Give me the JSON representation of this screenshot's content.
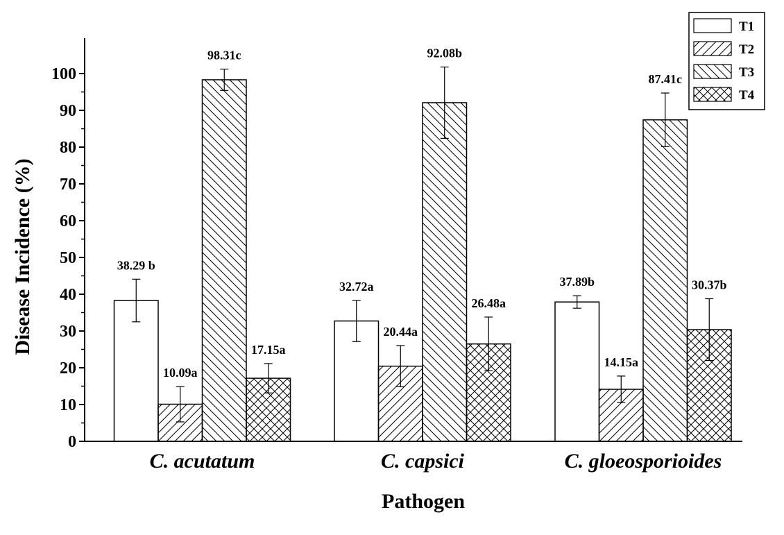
{
  "chart_data": {
    "type": "bar",
    "title": "",
    "xlabel": "Pathogen",
    "ylabel": "Disease Incidence (%)",
    "ylim": [
      0,
      105
    ],
    "yticks": [
      0,
      10,
      20,
      30,
      40,
      50,
      60,
      70,
      80,
      90,
      100
    ],
    "yticklabels": [
      "0",
      "10",
      "20",
      "30",
      "40",
      "50",
      "60",
      "70",
      "80",
      "90",
      "100"
    ],
    "categories": [
      "C. acutatum",
      "C. capsici",
      "C. gloeosporioides"
    ],
    "legend_position": "top-right",
    "series": [
      {
        "name": "T1",
        "pattern": "none",
        "values": [
          38.29,
          32.72,
          37.89
        ],
        "errors": [
          5.8,
          5.6,
          1.7
        ],
        "labels": [
          "38.29 b",
          "32.72a",
          "37.89b"
        ]
      },
      {
        "name": "T2",
        "pattern": "forward-diagonal",
        "values": [
          10.09,
          20.44,
          14.15
        ],
        "errors": [
          4.8,
          5.6,
          3.6
        ],
        "labels": [
          "10.09a",
          "20.44a",
          "14.15a"
        ]
      },
      {
        "name": "T3",
        "pattern": "backward-diagonal",
        "values": [
          98.31,
          92.08,
          87.41
        ],
        "errors": [
          2.9,
          9.7,
          7.3
        ],
        "labels": [
          "98.31c",
          "92.08b",
          "87.41c"
        ]
      },
      {
        "name": "T4",
        "pattern": "crosshatch",
        "values": [
          17.15,
          26.48,
          30.37
        ],
        "errors": [
          4.0,
          7.3,
          8.4
        ],
        "labels": [
          "17.15a",
          "26.48a",
          "30.37b"
        ]
      }
    ],
    "colors": {
      "bar_fill": "#ffffff",
      "stroke": "#000000"
    }
  }
}
